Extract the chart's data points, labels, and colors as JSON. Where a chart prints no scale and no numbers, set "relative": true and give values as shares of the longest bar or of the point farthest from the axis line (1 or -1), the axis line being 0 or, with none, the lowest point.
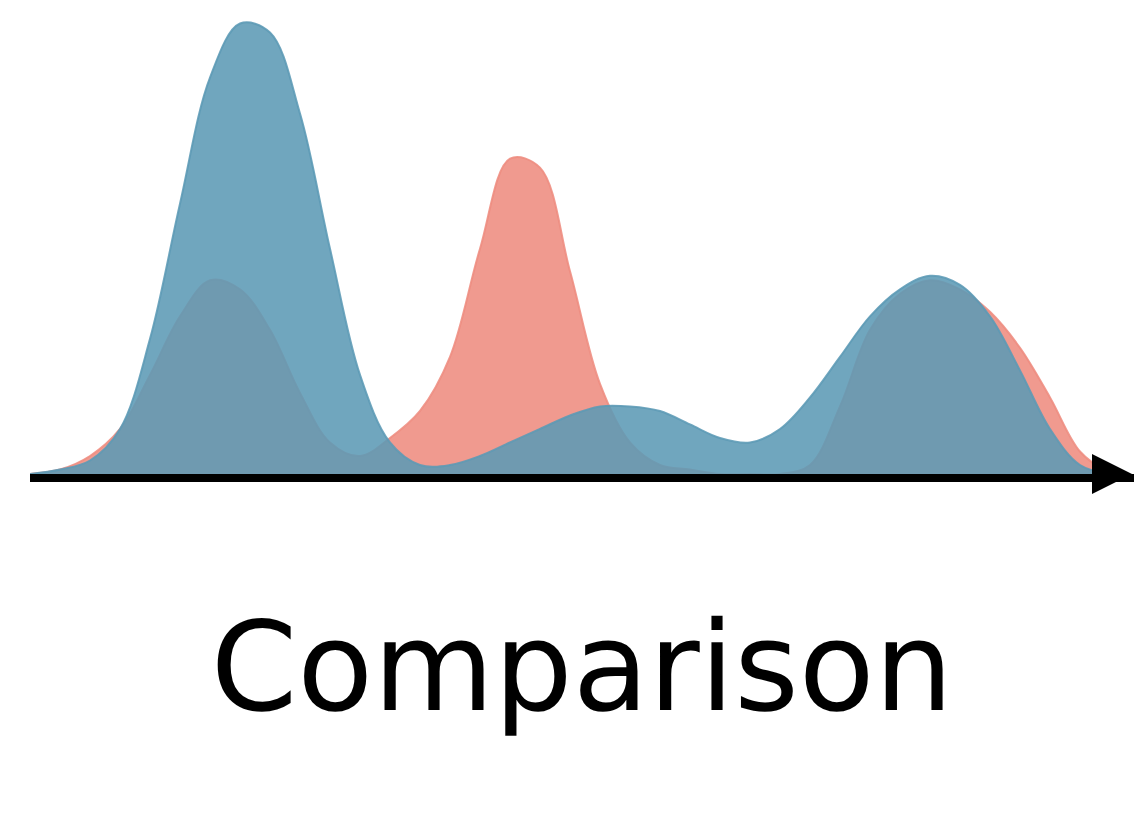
{
  "chart_data": {
    "type": "area",
    "relative": true,
    "xlabel": "Comparison",
    "categories": [
      null,
      null,
      null,
      null,
      null,
      null,
      null,
      null,
      null,
      null,
      null,
      null,
      null,
      null,
      null,
      null,
      null,
      null,
      null,
      null,
      null,
      null,
      null,
      null,
      null,
      null,
      null,
      null,
      null,
      null,
      null,
      null,
      null,
      null,
      null,
      null,
      null
    ],
    "series": [
      {
        "color": "#ee8c80",
        "values": [
          0,
          0.01,
          0.04,
          0.1,
          0.22,
          0.35,
          0.43,
          0.41,
          0.32,
          0.18,
          0.07,
          0.04,
          0.08,
          0.14,
          0.26,
          0.5,
          0.7,
          0.68,
          0.45,
          0.2,
          0.07,
          0.02,
          0.01,
          0,
          0,
          0,
          0.02,
          0.15,
          0.32,
          0.4,
          0.43,
          0.41,
          0.36,
          0.28,
          0.17,
          0.05,
          0
        ]
      },
      {
        "color": "#5c9ab5",
        "values": [
          0,
          0.01,
          0.03,
          0.1,
          0.3,
          0.6,
          0.88,
          1,
          0.98,
          0.8,
          0.5,
          0.22,
          0.07,
          0.02,
          0.02,
          0.04,
          0.07,
          0.1,
          0.13,
          0.15,
          0.15,
          0.14,
          0.11,
          0.08,
          0.07,
          0.1,
          0.17,
          0.26,
          0.35,
          0.41,
          0.44,
          0.42,
          0.35,
          0.23,
          0.1,
          0.02,
          0
        ]
      }
    ]
  }
}
